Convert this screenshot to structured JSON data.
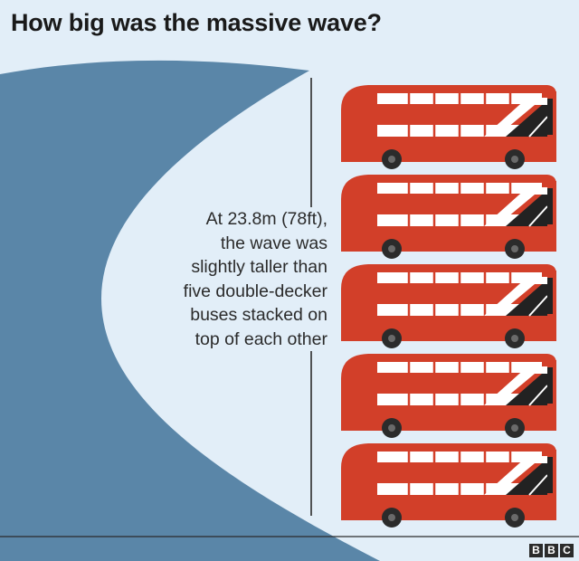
{
  "title": "How big was the massive wave?",
  "caption_lines": [
    "At 23.8m (78ft),",
    "the wave was",
    "slightly taller than",
    "five double-decker",
    "buses stacked on",
    "top of each other"
  ],
  "bus_count": 5,
  "logo": [
    "B",
    "B",
    "C"
  ],
  "colors": {
    "background": "#e2eef8",
    "wave": "#5a86a8",
    "bus_red": "#d23f29",
    "window_white": "#ffffff",
    "window_dark": "#222222",
    "text": "#1a1a1a"
  }
}
